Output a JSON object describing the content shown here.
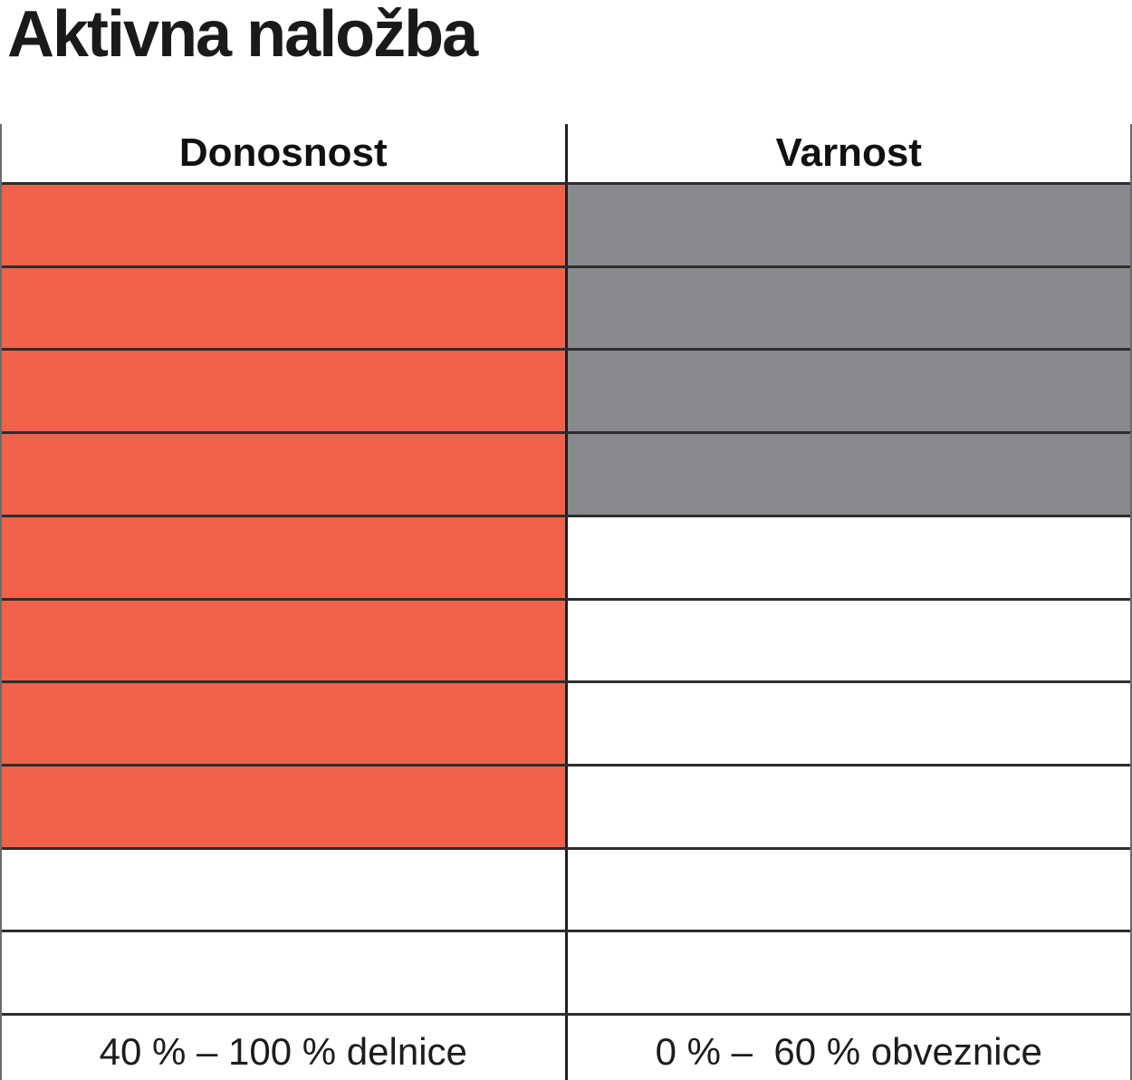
{
  "page": {
    "title": "Aktivna naložba"
  },
  "table": {
    "rows_total": 10,
    "columns": [
      {
        "key": "donosnost",
        "label": "Donosnost",
        "filled_cells": 8,
        "fill_color": "#F2624A",
        "footer": "40 % – 100 % delnice"
      },
      {
        "key": "varnost",
        "label": "Varnost",
        "filled_cells": 4,
        "fill_color": "#898A8D",
        "footer": "0 % –  60 % obveznice"
      }
    ],
    "border_color": "#2d2d2d"
  },
  "chart_data": {
    "type": "bar",
    "title": "Aktivna naložba",
    "categories": [
      "Donosnost",
      "Varnost"
    ],
    "series": [
      {
        "name": "filled_cells_out_of_10",
        "values": [
          8,
          4
        ]
      }
    ],
    "max_value": 10,
    "orientation": "vertical-cells-filled-from-top",
    "cell_colors": [
      "#F2624A",
      "#898A8D"
    ],
    "annotations": [
      "40 % – 100 % delnice",
      "0 % –  60 % obveznice"
    ],
    "legend_position": "none",
    "grid": true
  }
}
